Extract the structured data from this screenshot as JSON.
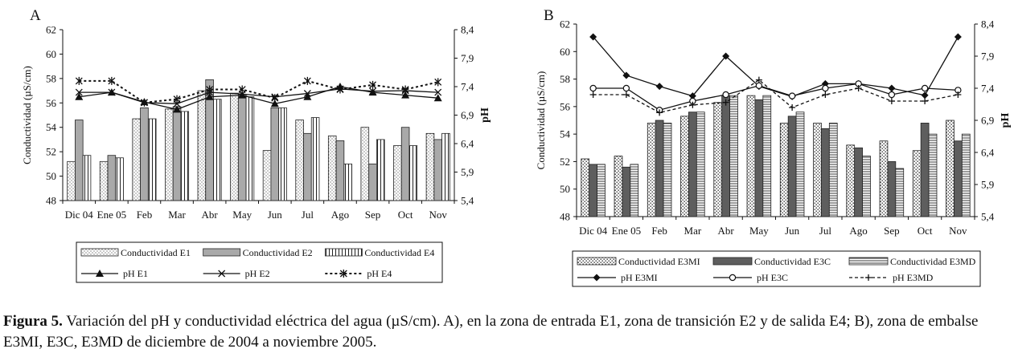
{
  "figure": {
    "caption_label": "Figura 5.",
    "caption_text": " Variación del pH y conductividad eléctrica del agua (µS/cm). A), en la zona de entrada E1, zona de transición E2 y de salida E4; B), zona de embalse E3MI, E3C, E3MD de diciembre de 2004 a noviembre 2005."
  },
  "chart_data": [
    {
      "panel": "A",
      "type": "bar",
      "categories": [
        "Dic 04",
        "Ene 05",
        "Feb",
        "Mar",
        "Abr",
        "May",
        "Jun",
        "Jul",
        "Ago",
        "Sep",
        "Oct",
        "Nov"
      ],
      "ylabel": "Conductividad (uS/cm)",
      "y2label": "pH",
      "ylim": [
        48,
        62
      ],
      "yticks": [
        "48",
        "50",
        "52",
        "54",
        "56",
        "58",
        "60",
        "62"
      ],
      "y2lim": [
        5.4,
        8.4
      ],
      "y2ticks": [
        "5,4",
        "5,9",
        "6,4",
        "6,9",
        "7,4",
        "7,9",
        "8,4"
      ],
      "bar_series": [
        {
          "name": "Conductividad E1",
          "values": [
            51.2,
            51.2,
            54.7,
            55.5,
            57.0,
            56.8,
            52.1,
            54.6,
            53.3,
            54.0,
            52.5,
            53.5
          ]
        },
        {
          "name": "Conductividad E2",
          "values": [
            54.6,
            51.7,
            55.6,
            55.7,
            57.9,
            56.7,
            55.6,
            53.5,
            52.9,
            51.0,
            54.0,
            53.0
          ]
        },
        {
          "name": "Conductividad E4",
          "values": [
            51.7,
            51.5,
            54.7,
            55.3,
            56.3,
            56.5,
            55.6,
            54.8,
            51.0,
            53.0,
            52.5,
            53.5
          ]
        }
      ],
      "line_series": [
        {
          "name": "pH E1",
          "values": [
            7.22,
            7.3,
            7.13,
            7.0,
            7.22,
            7.25,
            7.1,
            7.22,
            7.4,
            7.3,
            7.25,
            7.2
          ]
        },
        {
          "name": "pH E2",
          "values": [
            7.3,
            7.3,
            7.12,
            7.1,
            7.3,
            7.27,
            7.22,
            7.28,
            7.36,
            7.32,
            7.33,
            7.3
          ]
        },
        {
          "name": "pH E4",
          "values": [
            7.5,
            7.5,
            7.12,
            7.18,
            7.35,
            7.35,
            7.2,
            7.5,
            7.35,
            7.43,
            7.35,
            7.48
          ]
        }
      ]
    },
    {
      "panel": "B",
      "type": "bar",
      "categories": [
        "Dic 04",
        "Ene 05",
        "Feb",
        "Mar",
        "Abr",
        "May",
        "Jun",
        "Jul",
        "Ago",
        "Sep",
        "Oct",
        "Nov"
      ],
      "ylabel": "Conductividad (uS/cm)",
      "y2label": "pH",
      "ylim": [
        48,
        62
      ],
      "yticks": [
        "48",
        "50",
        "52",
        "54",
        "56",
        "58",
        "60",
        "62"
      ],
      "y2lim": [
        5.4,
        8.4
      ],
      "y2ticks": [
        "5,4",
        "5,9",
        "6,4",
        "6,9",
        "7,4",
        "7,9",
        "8,4"
      ],
      "bar_series": [
        {
          "name": "Conductividad E3MI",
          "values": [
            52.2,
            52.4,
            54.8,
            55.3,
            56.3,
            56.8,
            54.8,
            54.8,
            53.2,
            53.5,
            52.8,
            55.0
          ]
        },
        {
          "name": "Conductividad E3C",
          "values": [
            51.8,
            51.6,
            55.0,
            55.6,
            56.8,
            56.5,
            55.3,
            54.4,
            53.0,
            52.0,
            54.8,
            53.5
          ]
        },
        {
          "name": "Conductividad E3MD",
          "values": [
            51.8,
            51.8,
            54.8,
            55.6,
            56.8,
            56.8,
            55.6,
            54.8,
            52.4,
            51.5,
            54.0,
            54.0
          ]
        }
      ],
      "line_series": [
        {
          "name": "pH E3MI",
          "values": [
            8.2,
            7.6,
            7.43,
            7.28,
            7.9,
            7.43,
            7.27,
            7.47,
            7.47,
            7.4,
            7.29,
            8.2
          ]
        },
        {
          "name": "pH E3C",
          "values": [
            7.4,
            7.4,
            7.06,
            7.2,
            7.3,
            7.44,
            7.28,
            7.4,
            7.47,
            7.3,
            7.4,
            7.37
          ]
        },
        {
          "name": "pH E3MD",
          "values": [
            7.3,
            7.3,
            7.02,
            7.14,
            7.18,
            7.53,
            7.1,
            7.3,
            7.4,
            7.2,
            7.2,
            7.3
          ]
        }
      ]
    }
  ]
}
